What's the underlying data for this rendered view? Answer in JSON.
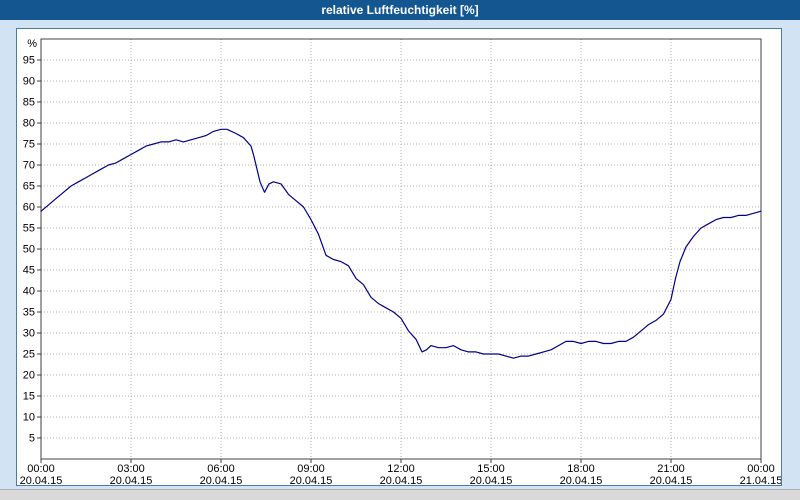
{
  "titlebar": {
    "title": "relative Luftfeuchtigkeit [%]"
  },
  "colors": {
    "titlebar_bg": "#14568F",
    "window_bg": "#D2E4F3",
    "panel_border": "#4A7AB0",
    "line": "#00008B",
    "grid": "#ADADAD",
    "axis": "#404040",
    "tick_text": "#000000",
    "scrollbar_bg": "#D9D9D9"
  },
  "chart_data": {
    "type": "line",
    "title": "relative Luftfeuchtigkeit [%]",
    "xlabel": "",
    "ylabel": "%",
    "ylim": [
      0,
      100
    ],
    "yticks": [
      5,
      10,
      15,
      20,
      25,
      30,
      35,
      40,
      45,
      50,
      55,
      60,
      65,
      70,
      75,
      80,
      85,
      90,
      95
    ],
    "xlim_hours": [
      0,
      24
    ],
    "grid": true,
    "legend": "none",
    "xticks": [
      {
        "hour": 0,
        "time": "00:00",
        "date": "20.04.15"
      },
      {
        "hour": 3,
        "time": "03:00",
        "date": "20.04.15"
      },
      {
        "hour": 6,
        "time": "06:00",
        "date": "20.04.15"
      },
      {
        "hour": 9,
        "time": "09:00",
        "date": "20.04.15"
      },
      {
        "hour": 12,
        "time": "12:00",
        "date": "20.04.15"
      },
      {
        "hour": 15,
        "time": "15:00",
        "date": "20.04.15"
      },
      {
        "hour": 18,
        "time": "18:00",
        "date": "20.04.15"
      },
      {
        "hour": 21,
        "time": "21:00",
        "date": "20.04.15"
      },
      {
        "hour": 24,
        "time": "00:00",
        "date": "21.04.15"
      }
    ],
    "series": [
      {
        "name": "relative Luftfeuchtigkeit [%]",
        "points": [
          [
            0,
            59
          ],
          [
            0.25,
            60.5
          ],
          [
            0.5,
            62
          ],
          [
            0.75,
            63.5
          ],
          [
            1,
            65
          ],
          [
            1.25,
            66
          ],
          [
            1.5,
            67
          ],
          [
            1.75,
            68
          ],
          [
            2,
            69
          ],
          [
            2.25,
            70
          ],
          [
            2.5,
            70.5
          ],
          [
            2.75,
            71.5
          ],
          [
            3,
            72.5
          ],
          [
            3.25,
            73.5
          ],
          [
            3.5,
            74.5
          ],
          [
            3.75,
            75
          ],
          [
            4,
            75.5
          ],
          [
            4.25,
            75.5
          ],
          [
            4.5,
            76
          ],
          [
            4.75,
            75.5
          ],
          [
            5,
            76
          ],
          [
            5.25,
            76.5
          ],
          [
            5.5,
            77
          ],
          [
            5.75,
            78
          ],
          [
            6,
            78.5
          ],
          [
            6.2,
            78.5
          ],
          [
            6.5,
            77.5
          ],
          [
            6.75,
            76.5
          ],
          [
            7,
            74.5
          ],
          [
            7.1,
            72
          ],
          [
            7.3,
            66
          ],
          [
            7.45,
            63.5
          ],
          [
            7.6,
            65.5
          ],
          [
            7.75,
            66
          ],
          [
            8,
            65.5
          ],
          [
            8.25,
            63
          ],
          [
            8.5,
            61.5
          ],
          [
            8.75,
            60
          ],
          [
            9,
            57
          ],
          [
            9.25,
            53.5
          ],
          [
            9.5,
            48.5
          ],
          [
            9.75,
            47.5
          ],
          [
            10,
            47
          ],
          [
            10.25,
            46
          ],
          [
            10.5,
            43
          ],
          [
            10.75,
            41.5
          ],
          [
            11,
            38.5
          ],
          [
            11.25,
            37
          ],
          [
            11.5,
            36
          ],
          [
            11.75,
            35
          ],
          [
            12,
            33.5
          ],
          [
            12.25,
            30.5
          ],
          [
            12.5,
            28.5
          ],
          [
            12.7,
            25.5
          ],
          [
            12.85,
            26
          ],
          [
            13,
            27
          ],
          [
            13.25,
            26.5
          ],
          [
            13.5,
            26.5
          ],
          [
            13.75,
            27
          ],
          [
            14,
            26
          ],
          [
            14.25,
            25.5
          ],
          [
            14.5,
            25.5
          ],
          [
            14.75,
            25
          ],
          [
            15,
            25
          ],
          [
            15.25,
            25
          ],
          [
            15.5,
            24.5
          ],
          [
            15.75,
            24
          ],
          [
            16,
            24.5
          ],
          [
            16.25,
            24.5
          ],
          [
            16.5,
            25
          ],
          [
            16.75,
            25.5
          ],
          [
            17,
            26
          ],
          [
            17.25,
            27
          ],
          [
            17.5,
            28
          ],
          [
            17.75,
            28
          ],
          [
            18,
            27.5
          ],
          [
            18.25,
            28
          ],
          [
            18.5,
            28
          ],
          [
            18.75,
            27.5
          ],
          [
            19,
            27.5
          ],
          [
            19.25,
            28
          ],
          [
            19.5,
            28
          ],
          [
            19.75,
            29
          ],
          [
            20,
            30.5
          ],
          [
            20.25,
            32
          ],
          [
            20.5,
            33
          ],
          [
            20.75,
            34.5
          ],
          [
            21,
            38
          ],
          [
            21.15,
            43
          ],
          [
            21.3,
            47
          ],
          [
            21.5,
            50.5
          ],
          [
            21.75,
            53
          ],
          [
            22,
            55
          ],
          [
            22.25,
            56
          ],
          [
            22.5,
            57
          ],
          [
            22.75,
            57.5
          ],
          [
            23,
            57.5
          ],
          [
            23.25,
            58
          ],
          [
            23.5,
            58
          ],
          [
            23.75,
            58.5
          ],
          [
            24,
            59
          ]
        ]
      }
    ]
  }
}
